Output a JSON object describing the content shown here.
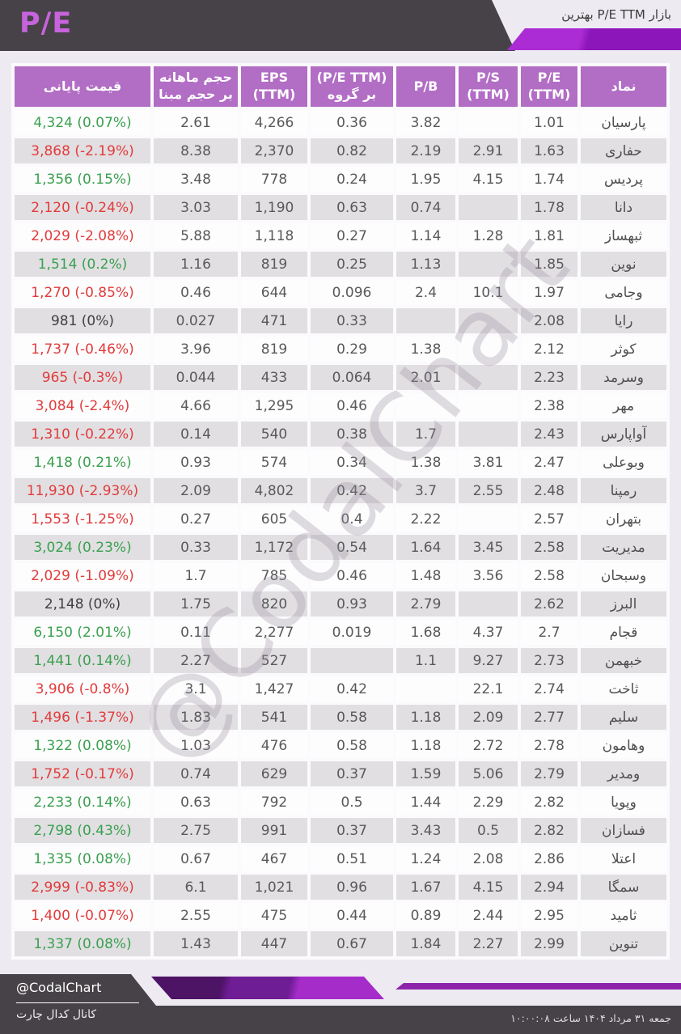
{
  "header": {
    "page_title": "P/E",
    "market_title": "بهترین P/E TTM بازار"
  },
  "watermark": "@CodalChart",
  "footer": {
    "handle": "@CodalChart",
    "channel": "کانال کدال چارت",
    "datetime": "جمعه ۳۱ مرداد ۱۴۰۴ ساعت ۱۰:۰۰:۰۸"
  },
  "colors": {
    "page_bg": "#EDEAF1",
    "dark_bar": "#474247",
    "header_purple": "#B26DC5",
    "row_gray": "#E1DFE2",
    "row_white": "#FDFDFE",
    "positive_green": "#3AA04F",
    "negative_red": "#E23B3B",
    "neutral": "#404040",
    "title_purple": "#C763DC",
    "ribbon_bright": "#AB2BD5",
    "ribbon_dark": "#8C16B9"
  },
  "chart_data": {
    "type": "table",
    "title": "بهترین P/E TTM بازار",
    "columns": [
      {
        "id": "symbol",
        "field": "symbol",
        "line1": "نماد",
        "line2": ""
      },
      {
        "id": "pe-ttm",
        "field": "pe",
        "line1": "P/E",
        "line2": "(TTM)"
      },
      {
        "id": "ps-ttm",
        "field": "ps",
        "line1": "P/S",
        "line2": "(TTM)"
      },
      {
        "id": "pb",
        "field": "pb",
        "line1": "P/B",
        "line2": ""
      },
      {
        "id": "pe-ttm-group",
        "field": "pe_group",
        "line1": "(P/E TTM)",
        "line2": "بر گروه"
      },
      {
        "id": "eps-ttm",
        "field": "eps",
        "line1": "EPS",
        "line2": "(TTM)"
      },
      {
        "id": "monthly-vol",
        "field": "vol",
        "line1": "حجم ماهانه",
        "line2": "بر حجم مبنا"
      },
      {
        "id": "close-price",
        "field": "price",
        "line1": "قیمت پایانی",
        "line2": ""
      }
    ],
    "rows": [
      {
        "symbol": "پارسیان",
        "pe": "1.01",
        "ps": "",
        "pb": "3.82",
        "pe_group": "0.36",
        "eps": "4,266",
        "vol": "2.61",
        "price": "4,324 (0.07%)",
        "trend": "up"
      },
      {
        "symbol": "حفاری",
        "pe": "1.63",
        "ps": "2.91",
        "pb": "2.19",
        "pe_group": "0.82",
        "eps": "2,370",
        "vol": "8.38",
        "price": "3,868 (-2.19%)",
        "trend": "down"
      },
      {
        "symbol": "پردیس",
        "pe": "1.74",
        "ps": "4.15",
        "pb": "1.95",
        "pe_group": "0.24",
        "eps": "778",
        "vol": "3.48",
        "price": "1,356 (0.15%)",
        "trend": "up"
      },
      {
        "symbol": "دانا",
        "pe": "1.78",
        "ps": "",
        "pb": "0.74",
        "pe_group": "0.63",
        "eps": "1,190",
        "vol": "3.03",
        "price": "2,120 (-0.24%)",
        "trend": "down"
      },
      {
        "symbol": "ثبهساز",
        "pe": "1.81",
        "ps": "1.28",
        "pb": "1.14",
        "pe_group": "0.27",
        "eps": "1,118",
        "vol": "5.88",
        "price": "2,029 (-2.08%)",
        "trend": "down"
      },
      {
        "symbol": "نوین",
        "pe": "1.85",
        "ps": "",
        "pb": "1.13",
        "pe_group": "0.25",
        "eps": "819",
        "vol": "1.16",
        "price": "1,514 (0.2%)",
        "trend": "up"
      },
      {
        "symbol": "وجامی",
        "pe": "1.97",
        "ps": "10.1",
        "pb": "2.4",
        "pe_group": "0.096",
        "eps": "644",
        "vol": "0.46",
        "price": "1,270 (-0.85%)",
        "trend": "down"
      },
      {
        "symbol": "رایا",
        "pe": "2.08",
        "ps": "",
        "pb": "",
        "pe_group": "0.33",
        "eps": "471",
        "vol": "0.027",
        "price": "981 (0%)",
        "trend": "flat"
      },
      {
        "symbol": "کوثر",
        "pe": "2.12",
        "ps": "",
        "pb": "1.38",
        "pe_group": "0.29",
        "eps": "819",
        "vol": "3.96",
        "price": "1,737 (-0.46%)",
        "trend": "down"
      },
      {
        "symbol": "وسرمد",
        "pe": "2.23",
        "ps": "",
        "pb": "2.01",
        "pe_group": "0.064",
        "eps": "433",
        "vol": "0.044",
        "price": "965 (-0.3%)",
        "trend": "down"
      },
      {
        "symbol": "مهر",
        "pe": "2.38",
        "ps": "",
        "pb": "",
        "pe_group": "0.46",
        "eps": "1,295",
        "vol": "4.66",
        "price": "3,084 (-2.4%)",
        "trend": "down"
      },
      {
        "symbol": "آواپارس",
        "pe": "2.43",
        "ps": "",
        "pb": "1.7",
        "pe_group": "0.38",
        "eps": "540",
        "vol": "0.14",
        "price": "1,310 (-0.22%)",
        "trend": "down"
      },
      {
        "symbol": "وبوعلی",
        "pe": "2.47",
        "ps": "3.81",
        "pb": "1.38",
        "pe_group": "0.34",
        "eps": "574",
        "vol": "0.93",
        "price": "1,418 (0.21%)",
        "trend": "up"
      },
      {
        "symbol": "رمپنا",
        "pe": "2.48",
        "ps": "2.55",
        "pb": "3.7",
        "pe_group": "0.42",
        "eps": "4,802",
        "vol": "2.09",
        "price": "11,930 (-2.93%)",
        "trend": "down"
      },
      {
        "symbol": "بتهران",
        "pe": "2.57",
        "ps": "",
        "pb": "2.22",
        "pe_group": "0.4",
        "eps": "605",
        "vol": "0.27",
        "price": "1,553 (-1.25%)",
        "trend": "down"
      },
      {
        "symbol": "مدیریت",
        "pe": "2.58",
        "ps": "3.45",
        "pb": "1.64",
        "pe_group": "0.54",
        "eps": "1,172",
        "vol": "0.33",
        "price": "3,024 (0.23%)",
        "trend": "up"
      },
      {
        "symbol": "وسبحان",
        "pe": "2.58",
        "ps": "3.56",
        "pb": "1.48",
        "pe_group": "0.46",
        "eps": "785",
        "vol": "1.7",
        "price": "2,029 (-1.09%)",
        "trend": "down"
      },
      {
        "symbol": "البرز",
        "pe": "2.62",
        "ps": "",
        "pb": "2.79",
        "pe_group": "0.93",
        "eps": "820",
        "vol": "1.75",
        "price": "2,148 (0%)",
        "trend": "flat"
      },
      {
        "symbol": "قجام",
        "pe": "2.7",
        "ps": "4.37",
        "pb": "1.68",
        "pe_group": "0.019",
        "eps": "2,277",
        "vol": "0.11",
        "price": "6,150 (2.01%)",
        "trend": "up"
      },
      {
        "symbol": "خبهمن",
        "pe": "2.73",
        "ps": "9.27",
        "pb": "1.1",
        "pe_group": "",
        "eps": "527",
        "vol": "2.27",
        "price": "1,441 (0.14%)",
        "trend": "up"
      },
      {
        "symbol": "ثاخت",
        "pe": "2.74",
        "ps": "22.1",
        "pb": "",
        "pe_group": "0.42",
        "eps": "1,427",
        "vol": "3.1",
        "price": "3,906 (-0.8%)",
        "trend": "down"
      },
      {
        "symbol": "سلیم",
        "pe": "2.77",
        "ps": "2.09",
        "pb": "1.18",
        "pe_group": "0.58",
        "eps": "541",
        "vol": "1.83",
        "price": "1,496 (-1.37%)",
        "trend": "down"
      },
      {
        "symbol": "وهامون",
        "pe": "2.78",
        "ps": "2.72",
        "pb": "1.18",
        "pe_group": "0.58",
        "eps": "476",
        "vol": "1.03",
        "price": "1,322 (0.08%)",
        "trend": "up"
      },
      {
        "symbol": "ومدیر",
        "pe": "2.79",
        "ps": "5.06",
        "pb": "1.59",
        "pe_group": "0.37",
        "eps": "629",
        "vol": "0.74",
        "price": "1,752 (-0.17%)",
        "trend": "down"
      },
      {
        "symbol": "وپویا",
        "pe": "2.82",
        "ps": "2.29",
        "pb": "1.44",
        "pe_group": "0.5",
        "eps": "792",
        "vol": "0.63",
        "price": "2,233 (0.14%)",
        "trend": "up"
      },
      {
        "symbol": "فسازان",
        "pe": "2.82",
        "ps": "0.5",
        "pb": "3.43",
        "pe_group": "0.37",
        "eps": "991",
        "vol": "2.75",
        "price": "2,798 (0.43%)",
        "trend": "up"
      },
      {
        "symbol": "اعتلا",
        "pe": "2.86",
        "ps": "2.08",
        "pb": "1.24",
        "pe_group": "0.51",
        "eps": "467",
        "vol": "0.67",
        "price": "1,335 (0.08%)",
        "trend": "up"
      },
      {
        "symbol": "سمگا",
        "pe": "2.94",
        "ps": "4.15",
        "pb": "1.67",
        "pe_group": "0.96",
        "eps": "1,021",
        "vol": "6.1",
        "price": "2,999 (-0.83%)",
        "trend": "down"
      },
      {
        "symbol": "ثامید",
        "pe": "2.95",
        "ps": "2.44",
        "pb": "0.89",
        "pe_group": "0.44",
        "eps": "475",
        "vol": "2.55",
        "price": "1,400 (-0.07%)",
        "trend": "down"
      },
      {
        "symbol": "تنوین",
        "pe": "2.99",
        "ps": "2.27",
        "pb": "1.84",
        "pe_group": "0.67",
        "eps": "447",
        "vol": "1.43",
        "price": "1,337 (0.08%)",
        "trend": "up"
      }
    ]
  }
}
